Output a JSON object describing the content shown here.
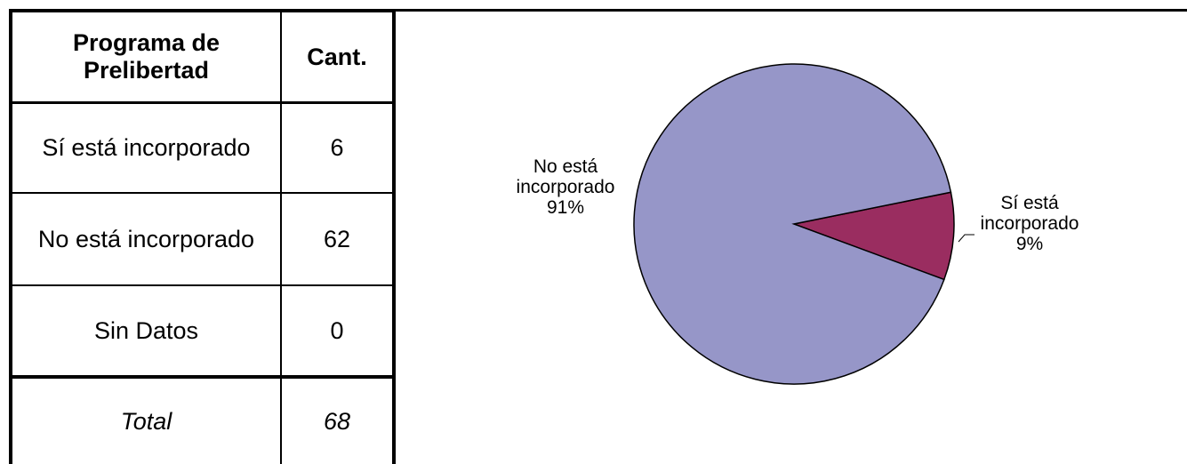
{
  "table": {
    "header": {
      "col1": "Programa de Prelibertad",
      "col1_lines": [
        "Programa de",
        "Prelibertad"
      ],
      "col2": "Cant."
    },
    "rows": [
      {
        "label": "Sí está incorporado",
        "value": "6"
      },
      {
        "label": "No está incorporado",
        "value": "62"
      },
      {
        "label": "Sin Datos",
        "value": "0"
      }
    ],
    "total": {
      "label": "Total",
      "value": "68"
    }
  },
  "chart_data": {
    "type": "pie",
    "title": "",
    "slices": [
      {
        "label": "Sí está incorporado",
        "value": 6,
        "percent_label": "9%",
        "label_lines": [
          "Sí está",
          "incorporado",
          "9%"
        ],
        "color": "#9a2d60"
      },
      {
        "label": "No está incorporado",
        "value": 62,
        "percent_label": "91%",
        "label_lines": [
          "No está",
          "incorporado",
          "91%"
        ],
        "color": "#9696c8"
      }
    ],
    "legend": "none"
  }
}
